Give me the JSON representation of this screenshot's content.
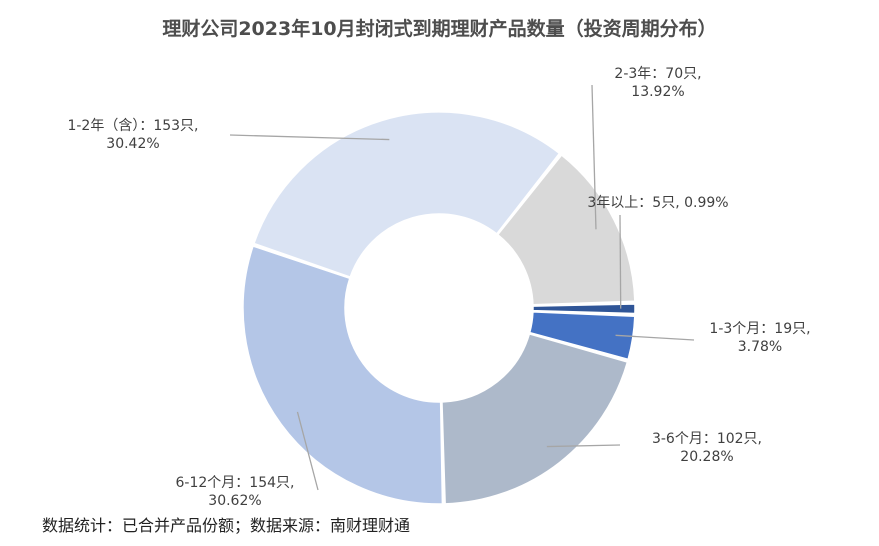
{
  "chart_data": {
    "type": "pie",
    "title": "理财公司2023年10月封闭式到期理财产品数量（投资周期分布）",
    "donut": true,
    "slices": [
      {
        "category": "1-3个月",
        "value": 19,
        "percent": "3.78%",
        "label_line1": "1-3个月：19只,",
        "label_line2": "3.78%",
        "color": "#4472c4"
      },
      {
        "category": "3-6个月",
        "value": 102,
        "percent": "20.28%",
        "label_line1": "3-6个月：102只,",
        "label_line2": "20.28%",
        "color": "#adb9ca"
      },
      {
        "category": "6-12个月",
        "value": 154,
        "percent": "30.62%",
        "label_line1": "6-12个月：154只,",
        "label_line2": "30.62%",
        "color": "#b4c6e7"
      },
      {
        "category": "1-2年（含）",
        "value": 153,
        "percent": "30.42%",
        "label_line1": "1-2年（含）：153只,",
        "label_line2": "30.42%",
        "color": "#dae3f3"
      },
      {
        "category": "2-3年",
        "value": 70,
        "percent": "13.92%",
        "label_line1": "2-3年：70只,",
        "label_line2": "13.92%",
        "color": "#d9d9d9"
      },
      {
        "category": "3年以上",
        "value": 5,
        "percent": "0.99%",
        "label_line1": "3年以上：5只, 0.99%",
        "label_line2": "",
        "color": "#2f5597"
      }
    ]
  },
  "footer": {
    "note": "数据统计：已合并产品份额；数据来源：南财理财通"
  }
}
